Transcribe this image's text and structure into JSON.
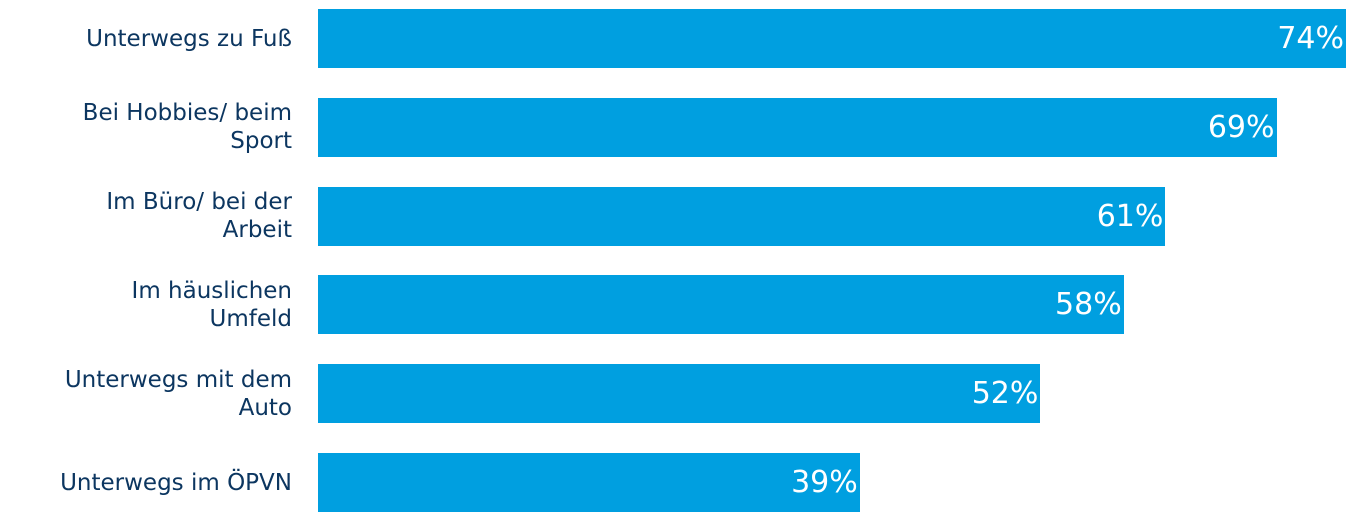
{
  "colors": {
    "bar": "#009fe0",
    "label": "#0c3660",
    "value_text": "#ffffff"
  },
  "chart_data": {
    "type": "bar",
    "orientation": "horizontal",
    "categories": [
      "Unterwegs zu Fuß",
      "Bei Hobbies/ beim Sport",
      "Im Büro/ bei der Arbeit",
      "Im häuslichen Umfeld",
      "Unterwegs mit dem Auto",
      "Unterwegs im ÖPVN"
    ],
    "values": [
      74,
      69,
      61,
      58,
      52,
      39
    ],
    "value_labels": [
      "74%",
      "69%",
      "61%",
      "58%",
      "52%",
      "39%"
    ],
    "unit": "%",
    "title": "",
    "xlabel": "",
    "ylabel": "",
    "xlim": [
      0,
      74
    ],
    "grid": false,
    "legend": "none"
  }
}
